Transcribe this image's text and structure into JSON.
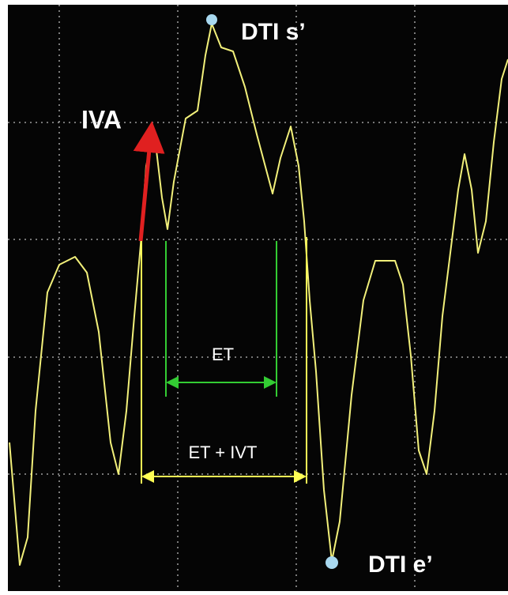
{
  "annotations": {
    "peak_s": "DTI s’",
    "iva": "IVA",
    "et": "ET",
    "et_ivt": "ET + IVT",
    "peak_e": "DTI e’"
  }
}
